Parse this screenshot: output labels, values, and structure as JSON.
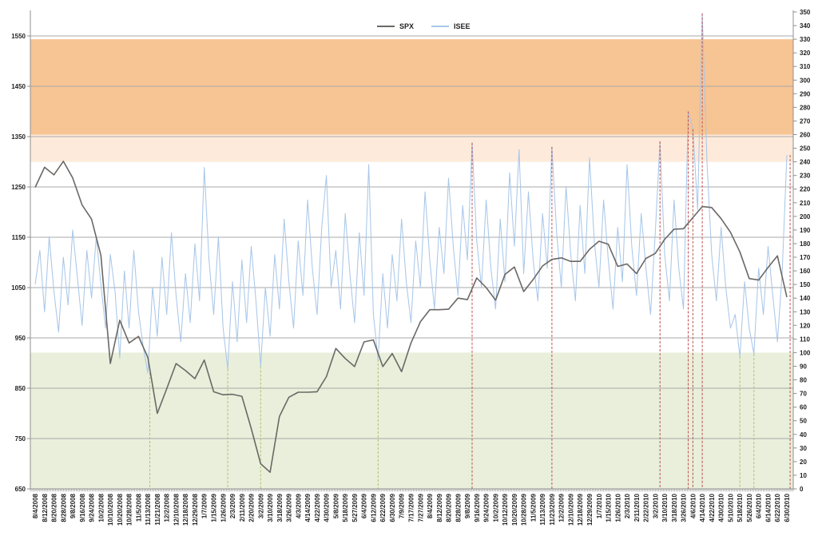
{
  "chart_data": {
    "type": "line",
    "title": "",
    "legend": [
      "SPX",
      "ISEE"
    ],
    "legend_position": "top-center",
    "grid": true,
    "x_labels": [
      "8/4/2008",
      "8/12/2008",
      "8/20/2008",
      "8/28/2008",
      "9/8/2008",
      "9/16/2008",
      "9/24/2008",
      "10/2/2008",
      "10/10/2008",
      "10/20/2008",
      "10/28/2008",
      "11/5/2008",
      "11/13/2008",
      "11/21/2008",
      "12/2/2008",
      "12/10/2008",
      "12/18/2008",
      "12/29/2008",
      "1/7/2009",
      "1/15/2009",
      "1/26/2009",
      "2/3/2009",
      "2/11/2009",
      "2/20/2009",
      "3/2/2009",
      "3/10/2009",
      "3/18/2009",
      "3/26/2009",
      "4/3/2009",
      "4/14/2009",
      "4/22/2009",
      "4/30/2009",
      "5/8/2009",
      "5/18/2009",
      "5/27/2009",
      "6/4/2009",
      "6/12/2009",
      "6/22/2009",
      "6/30/2009",
      "7/9/2009",
      "7/17/2009",
      "7/27/2009",
      "8/4/2009",
      "8/12/2009",
      "8/20/2009",
      "8/28/2009",
      "9/8/2009",
      "9/16/2009",
      "9/24/2009",
      "10/2/2009",
      "10/12/2009",
      "10/20/2009",
      "10/28/2009",
      "11/5/2009",
      "11/13/2009",
      "11/23/2009",
      "12/2/2009",
      "12/10/2009",
      "12/18/2009",
      "12/29/2009",
      "1/7/2010",
      "1/15/2010",
      "1/26/2010",
      "2/3/2010",
      "2/11/2010",
      "2/22/2010",
      "3/2/2010",
      "3/10/2010",
      "3/18/2010",
      "3/26/2010",
      "4/6/2010",
      "4/14/2010",
      "4/22/2010",
      "4/30/2010",
      "5/10/2010",
      "5/18/2010",
      "5/26/2010",
      "6/4/2010",
      "6/14/2010",
      "6/22/2010",
      "6/30/2010"
    ],
    "left_axis": {
      "series": "SPX",
      "min": 650,
      "max": 1597,
      "ticks": [
        650,
        750,
        850,
        950,
        1050,
        1150,
        1250,
        1350,
        1450,
        1550
      ]
    },
    "right_axis": {
      "series": "ISEE",
      "min": 0,
      "max": 350,
      "ticks": [
        0,
        10,
        20,
        30,
        40,
        50,
        60,
        70,
        80,
        90,
        100,
        110,
        120,
        130,
        140,
        150,
        160,
        170,
        180,
        190,
        200,
        210,
        220,
        230,
        240,
        250,
        260,
        270,
        280,
        290,
        300,
        310,
        320,
        330,
        340,
        350
      ]
    },
    "bands": [
      {
        "name": "isee-high-zone",
        "axis": "right",
        "from": 260,
        "to": 330,
        "color": "#f7c493"
      },
      {
        "name": "isee-elevated-zone",
        "axis": "right",
        "from": 240,
        "to": 260,
        "color": "#fdeada"
      },
      {
        "name": "isee-low-zone",
        "axis": "right",
        "from": 0,
        "to": 100,
        "color": "#e9efdb"
      }
    ],
    "series": [
      {
        "name": "SPX",
        "axis": "left",
        "color": "#6b6865",
        "stroke_width": 1.6,
        "points_per_label": 1,
        "values": [
          1249,
          1289,
          1274,
          1301,
          1268,
          1214,
          1186,
          1114,
          899,
          985,
          940,
          953,
          911,
          800,
          849,
          899,
          885,
          869,
          906,
          843,
          837,
          838,
          834,
          770,
          700,
          683,
          794,
          832,
          842,
          842,
          843,
          873,
          929,
          909,
          893,
          942,
          946,
          893,
          919,
          883,
          940,
          982,
          1006,
          1006,
          1007,
          1029,
          1026,
          1069,
          1050,
          1025,
          1076,
          1091,
          1042,
          1066,
          1093,
          1106,
          1109,
          1102,
          1102,
          1126,
          1142,
          1136,
          1092,
          1097,
          1078,
          1108,
          1118,
          1146,
          1166,
          1167,
          1189,
          1211,
          1209,
          1187,
          1160,
          1121,
          1068,
          1065,
          1090,
          1113,
          1031
        ]
      },
      {
        "name": "ISEE",
        "axis": "right",
        "color": "#a9c7e9",
        "stroke_width": 1.05,
        "points_per_label": 2,
        "values": [
          150,
          175,
          130,
          185,
          145,
          115,
          170,
          135,
          190,
          155,
          120,
          175,
          140,
          185,
          150,
          118,
          172,
          145,
          96,
          160,
          118,
          175,
          130,
          104,
          85,
          148,
          112,
          170,
          128,
          188,
          142,
          108,
          158,
          122,
          180,
          138,
          236,
          168,
          128,
          185,
          118,
          88,
          152,
          108,
          168,
          122,
          178,
          138,
          90,
          148,
          112,
          172,
          132,
          198,
          152,
          118,
          182,
          142,
          212,
          162,
          128,
          192,
          230,
          148,
          175,
          132,
          202,
          158,
          122,
          188,
          142,
          238,
          128,
          95,
          158,
          118,
          172,
          138,
          198,
          152,
          122,
          182,
          148,
          218,
          168,
          132,
          192,
          158,
          228,
          178,
          142,
          208,
          168,
          254,
          182,
          148,
          212,
          162,
          132,
          198,
          152,
          232,
          178,
          249,
          158,
          218,
          168,
          138,
          202,
          162,
          251,
          188,
          148,
          222,
          172,
          138,
          208,
          158,
          243,
          182,
          148,
          212,
          168,
          132,
          192,
          152,
          238,
          178,
          142,
          202,
          162,
          128,
          188,
          255,
          172,
          138,
          212,
          162,
          132,
          277,
          264,
          205,
          349,
          240,
          172,
          138,
          192,
          148,
          118,
          128,
          97,
          152,
          118,
          99,
          162,
          128,
          178,
          142,
          108,
          158,
          245
        ]
      }
    ],
    "event_lines": {
      "red_high_signals": {
        "color": "#c0504d",
        "style": "dashed",
        "lines": [
          {
            "near_label": "9/16/2009",
            "x_index": 46.5,
            "value": 254
          },
          {
            "near_label": "11/23/2009",
            "x_index": 55,
            "value": 251
          },
          {
            "near_label": "3/18/2010",
            "x_index": 66.5,
            "value": 255
          },
          {
            "near_label": "4/14/2010",
            "x_index": 69.5,
            "value": 277
          },
          {
            "near_label": "4/14/2010",
            "x_index": 70,
            "value": 264
          },
          {
            "near_label": "4/22/2010",
            "x_index": 71,
            "value": 349
          },
          {
            "near_label": "6/30/2010",
            "x_index": 80.35,
            "value": 245
          }
        ]
      },
      "green_low_signals": {
        "color": "#a9c472",
        "style": "dashed",
        "lines": [
          {
            "near_label": "11/13/2008",
            "x_index": 12.2,
            "value": 85
          },
          {
            "near_label": "1/26/2009",
            "x_index": 20.5,
            "value": 88
          },
          {
            "near_label": "3/2/2009",
            "x_index": 24,
            "value": 90
          },
          {
            "near_label": "6/12/2009",
            "x_index": 36.5,
            "value": 95
          },
          {
            "near_label": "5/26/2010",
            "x_index": 75,
            "value": 97
          },
          {
            "near_label": "6/4/2010",
            "x_index": 76.5,
            "value": 99
          }
        ]
      }
    },
    "colors": {
      "gridline": "#a9a9a9",
      "axis_line": "#909090",
      "tick_text": "#1f1f1f",
      "background": "#ffffff"
    }
  }
}
